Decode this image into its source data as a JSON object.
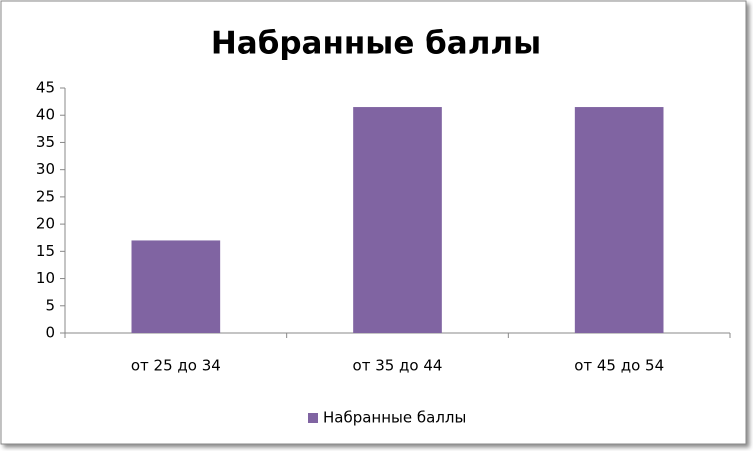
{
  "chart_data": {
    "type": "bar",
    "title": "Набранные баллы",
    "categories": [
      "от 25 до 34",
      "от 35 до 44",
      "от 45 до 54"
    ],
    "series": [
      {
        "name": "Набранные баллы",
        "color": "#8064a2",
        "values": [
          17,
          41.5,
          41.5
        ]
      }
    ],
    "ylim": [
      0,
      45
    ],
    "yticks": [
      0,
      5,
      10,
      15,
      20,
      25,
      30,
      35,
      40,
      45
    ],
    "grid": false,
    "legend": "bottom"
  }
}
